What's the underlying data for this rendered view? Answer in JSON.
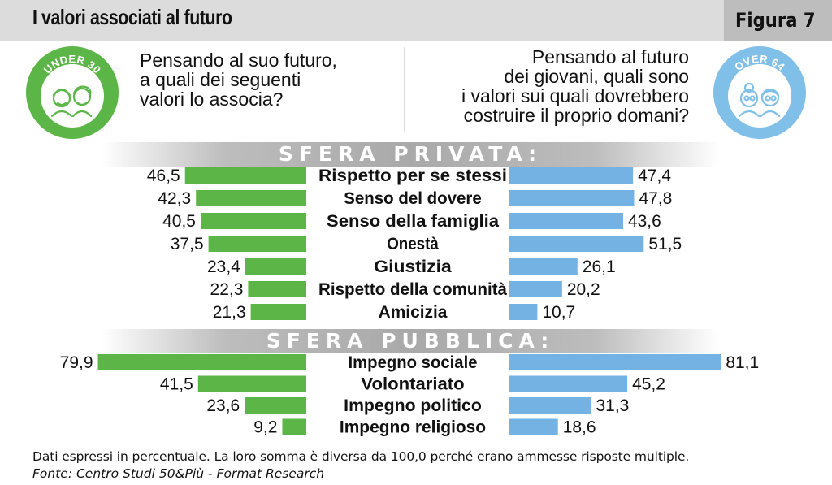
{
  "header": {
    "title": "I valori associati al futuro",
    "figure_label": "Figura 7"
  },
  "badges": {
    "left_text": "UNDER 30",
    "right_text": "OVER 64"
  },
  "questions": {
    "left": [
      "Pensando al suo futuro,",
      "a quali dei seguenti",
      "valori lo associa?"
    ],
    "right": [
      "Pensando al futuro",
      "dei giovani, quali sono",
      "i valori sui quali dovrebbero",
      "costruire il proprio domani?"
    ]
  },
  "colors": {
    "left_bar": "#5bb547",
    "right_bar": "#73b2e3",
    "badge_left": "#5bb547",
    "badge_right": "#7fbfe8"
  },
  "chart_data": {
    "type": "bar",
    "orientation": "horizontal-butterfly",
    "series": [
      {
        "name": "UNDER 30",
        "side": "left"
      },
      {
        "name": "OVER 64",
        "side": "right"
      }
    ],
    "sections": [
      {
        "title": "SFERA PRIVATA:",
        "categories": [
          "Rispetto per se stessi",
          "Senso del dovere",
          "Senso della famiglia",
          "Onestà",
          "Giustizia",
          "Rispetto della comunità",
          "Amicizia"
        ],
        "left_values": [
          46.5,
          42.3,
          40.5,
          37.5,
          23.4,
          22.3,
          21.3
        ],
        "right_values": [
          47.4,
          47.8,
          43.6,
          51.5,
          26.1,
          20.2,
          10.7
        ],
        "left_labels": [
          "46,5",
          "42,3",
          "40,5",
          "37,5",
          "23,4",
          "22,3",
          "21,3"
        ],
        "right_labels": [
          "47,4",
          "47,8",
          "43,6",
          "51,5",
          "26,1",
          "20,2",
          "10,7"
        ]
      },
      {
        "title": "SFERA PUBBLICA:",
        "categories": [
          "Impegno sociale",
          "Volontariato",
          "Impegno politico",
          "Impegno religioso"
        ],
        "left_values": [
          79.9,
          41.5,
          23.6,
          9.2
        ],
        "right_values": [
          81.1,
          45.2,
          31.3,
          18.6
        ],
        "left_labels": [
          "79,9",
          "41,5",
          "23,6",
          "9,2"
        ],
        "right_labels": [
          "81,1",
          "45,2",
          "31,3",
          "18,6"
        ]
      }
    ],
    "grid": false
  },
  "footer": {
    "note": "Dati espressi in percentuale. La loro somma è diversa da 100,0 perché erano ammesse risposte multiple.",
    "source": "Fonte: Centro Studi 50&Più - Format Research"
  }
}
